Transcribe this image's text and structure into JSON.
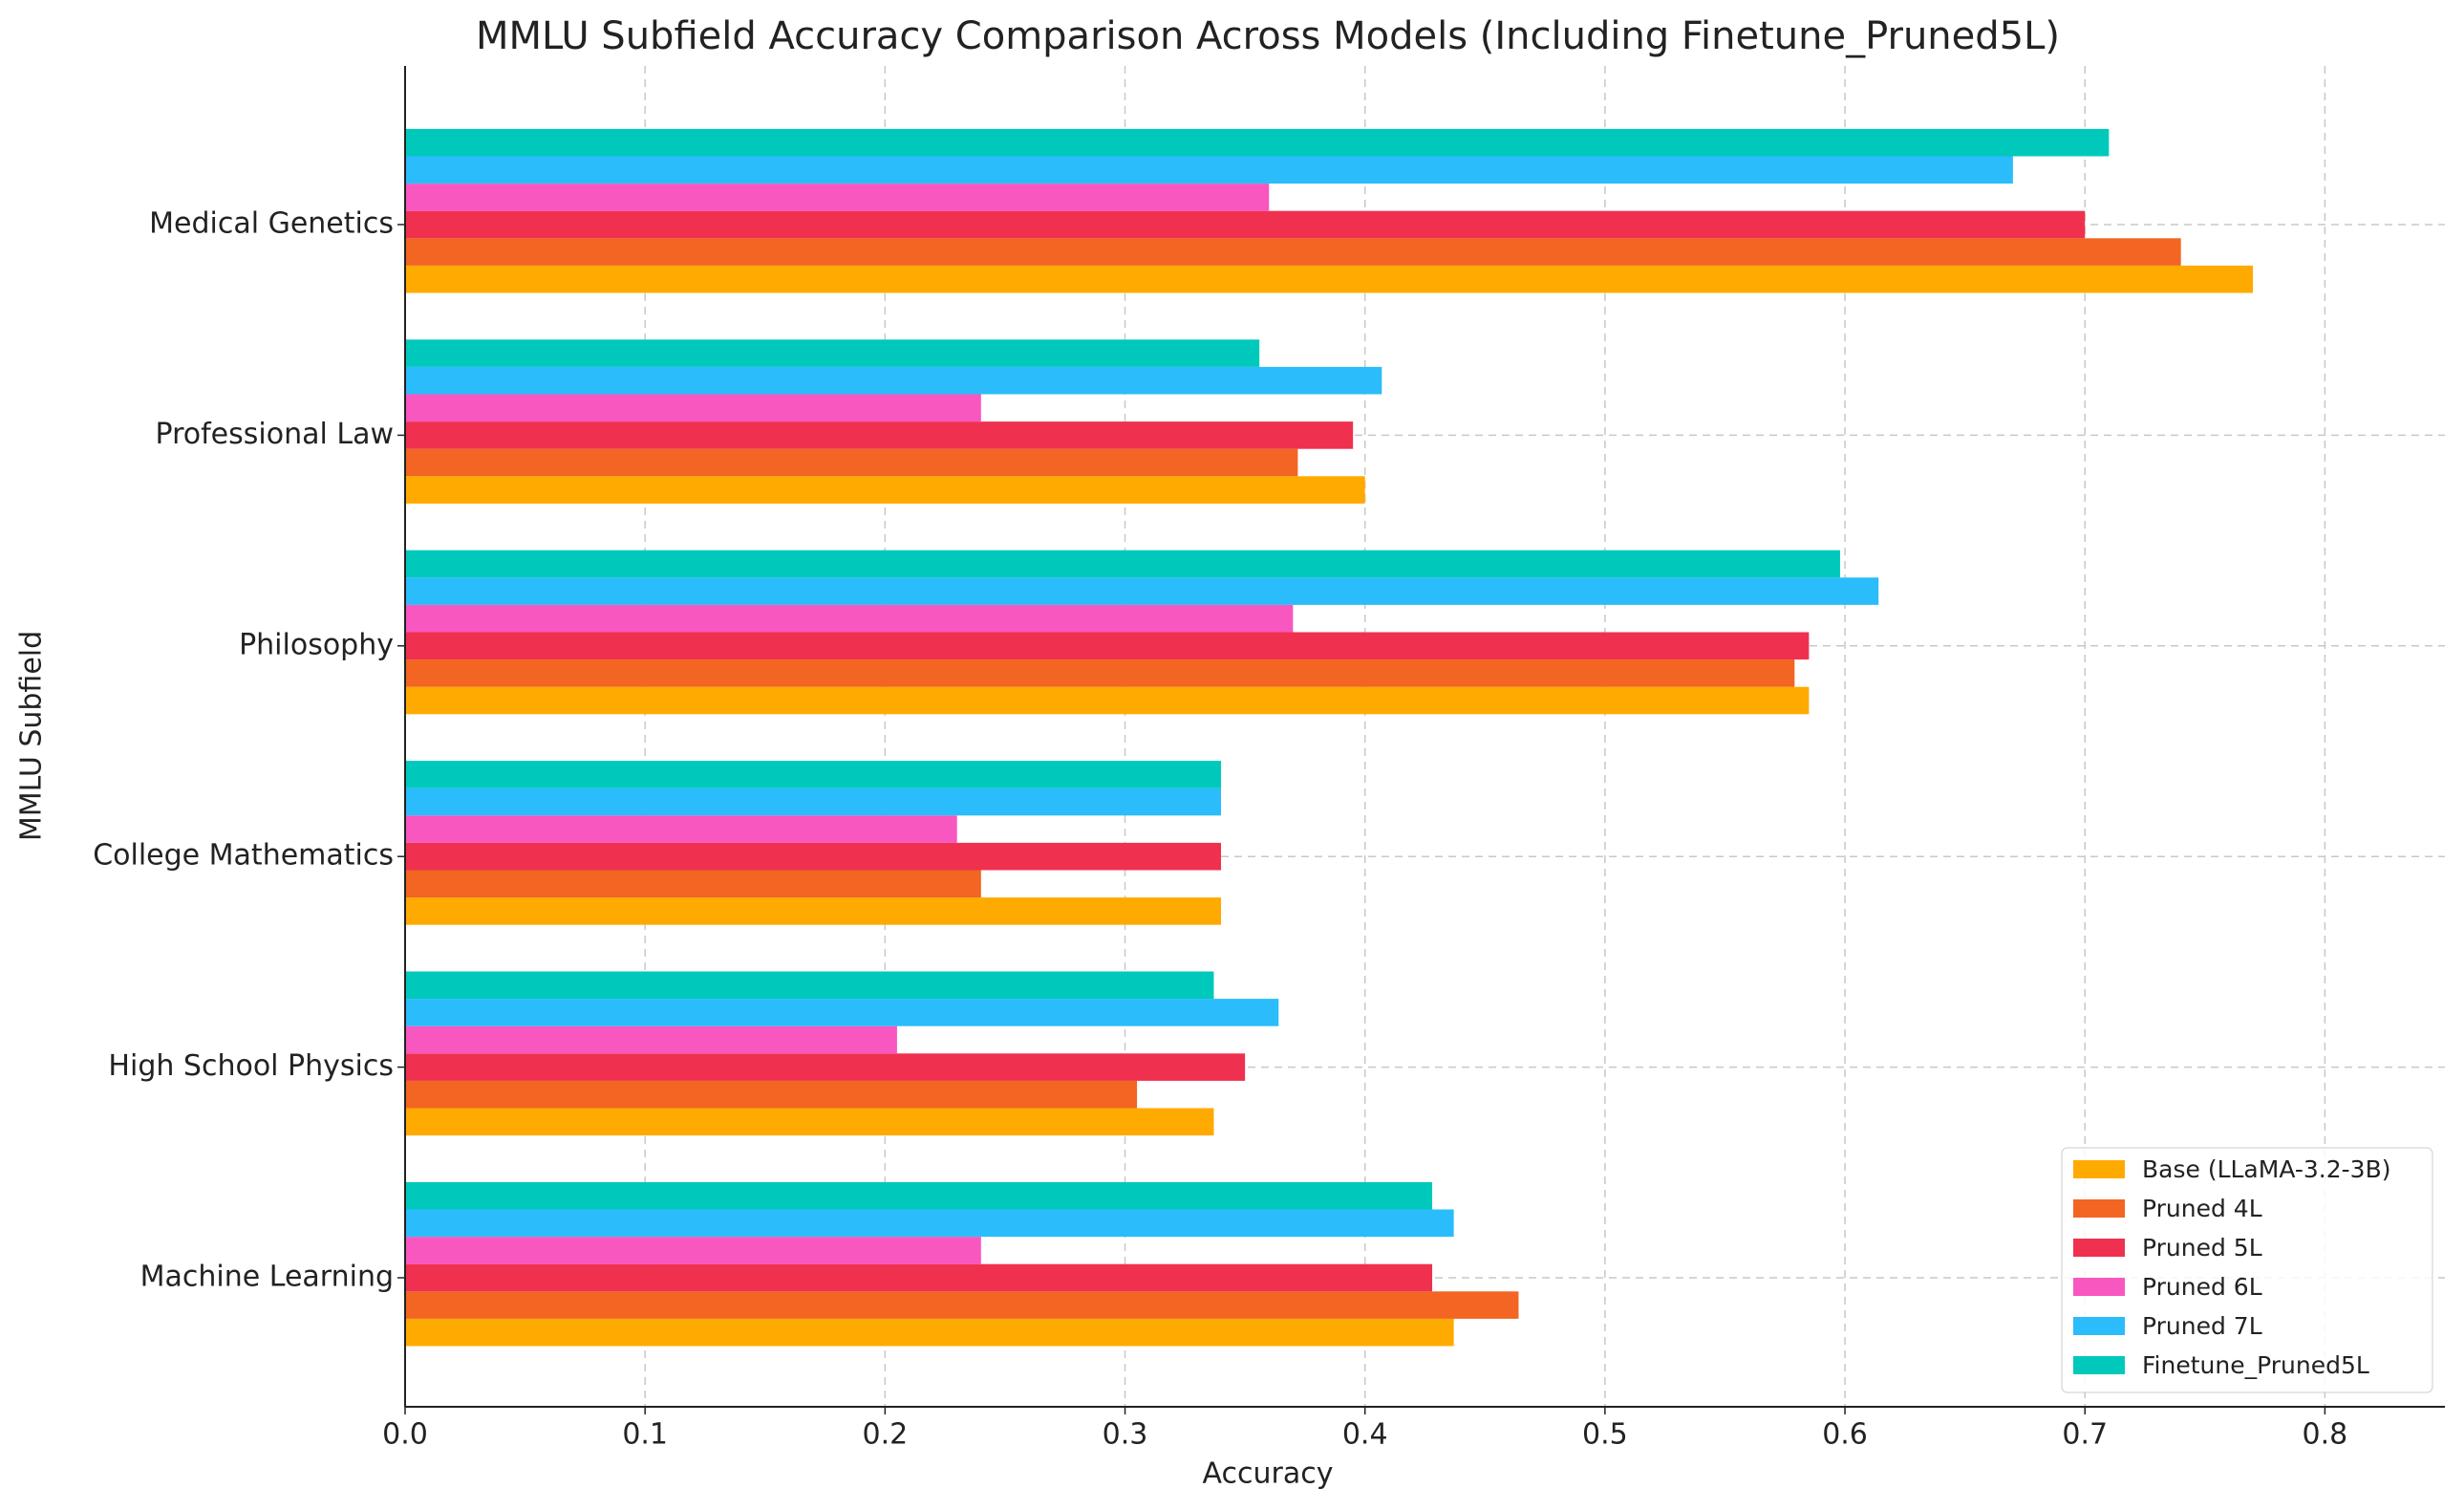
{
  "chart_data": {
    "type": "hbar-grouped",
    "title": "MMLU Subfield Accuracy Comparison Across Models (Including Finetune_Pruned5L)",
    "x_label": "Accuracy",
    "y_label": "MMLU Subfield",
    "categories": [
      "Medical Genetics",
      "Professional Law",
      "Philosophy",
      "College Mathematics",
      "High School Physics",
      "Machine Learning"
    ],
    "series": [
      {
        "name": "Base (LLaMA-3.2-3B)",
        "color": "#ffaa00",
        "values": [
          0.77,
          0.4,
          0.585,
          0.34,
          0.337,
          0.437
        ]
      },
      {
        "name": "Pruned 4L",
        "color": "#f26522",
        "values": [
          0.74,
          0.372,
          0.579,
          0.24,
          0.305,
          0.464
        ]
      },
      {
        "name": "Pruned 5L",
        "color": "#f0304f",
        "values": [
          0.7,
          0.395,
          0.585,
          0.34,
          0.35,
          0.428
        ]
      },
      {
        "name": "Pruned 6L",
        "color": "#f857c0",
        "values": [
          0.36,
          0.24,
          0.37,
          0.23,
          0.205,
          0.24
        ]
      },
      {
        "name": "Pruned 7L",
        "color": "#2bbcfb",
        "values": [
          0.67,
          0.407,
          0.614,
          0.34,
          0.364,
          0.437
        ]
      },
      {
        "name": "Finetune_Pruned5L",
        "color": "#00c9bc",
        "values": [
          0.71,
          0.356,
          0.598,
          0.34,
          0.337,
          0.428
        ]
      }
    ],
    "xlim": [
      0,
      0.85
    ],
    "xticks": [
      {
        "value": 0,
        "label": "0.0"
      },
      0.1,
      0.2,
      0.3,
      0.4,
      0.5,
      0.6,
      0.7,
      0.8
    ],
    "grid": true,
    "legend": "lower right"
  }
}
